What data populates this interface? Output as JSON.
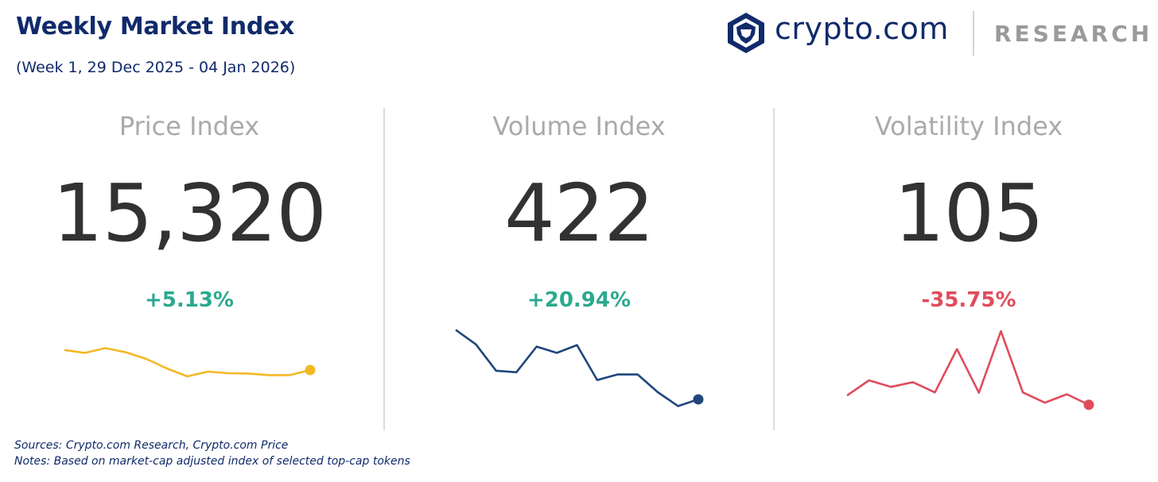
{
  "header": {
    "title": "Weekly Market Index",
    "subtitle": "(Week 1, 29 Dec 2025 - 04 Jan 2026)"
  },
  "brand": {
    "name": "crypto.com",
    "section": "RESEARCH",
    "logo_icon": "crypto-com-lion-shield-icon"
  },
  "colors": {
    "title": "#102a6b",
    "positive": "#2aa98f",
    "negative": "#e04c5c",
    "price_line": "#f2b824",
    "volume_line": "#20467c",
    "volatility_line": "#e04c5c"
  },
  "chart_data": [
    {
      "type": "line",
      "title": "Price Index",
      "value": "15,320",
      "change": "+5.13%",
      "change_direction": "positive",
      "series": [
        {
          "values": [
            0.38,
            0.29,
            0.44,
            0.31,
            0.1,
            -0.2,
            -0.45,
            -0.3,
            -0.35,
            -0.36,
            -0.41,
            -0.41,
            -0.25
          ]
        }
      ],
      "ylim": [
        -1,
        1
      ],
      "grid": false
    },
    {
      "type": "line",
      "title": "Volume Index",
      "value": "422",
      "change": "+20.94%",
      "change_direction": "positive",
      "series": [
        {
          "values": [
            0.82,
            0.43,
            -0.28,
            -0.32,
            0.37,
            0.2,
            0.41,
            -0.53,
            -0.38,
            -0.38,
            -0.86,
            -1.23,
            -1.05
          ]
        }
      ],
      "ylim": [
        -1.5,
        1
      ],
      "grid": false
    },
    {
      "type": "line",
      "title": "Volatility Index",
      "value": "105",
      "change": "-35.75%",
      "change_direction": "negative",
      "series": [
        {
          "values": [
            -0.81,
            -0.32,
            -0.53,
            -0.38,
            -0.71,
            0.69,
            -0.72,
            1.27,
            -0.71,
            -1.04,
            -0.77,
            -1.11
          ]
        }
      ],
      "ylim": [
        -1.5,
        1.5
      ],
      "grid": false
    }
  ],
  "footer": {
    "sources": "Sources: Crypto.com Research,  Crypto.com Price",
    "notes": "Notes: Based on market-cap adjusted index of selected top-cap tokens"
  }
}
